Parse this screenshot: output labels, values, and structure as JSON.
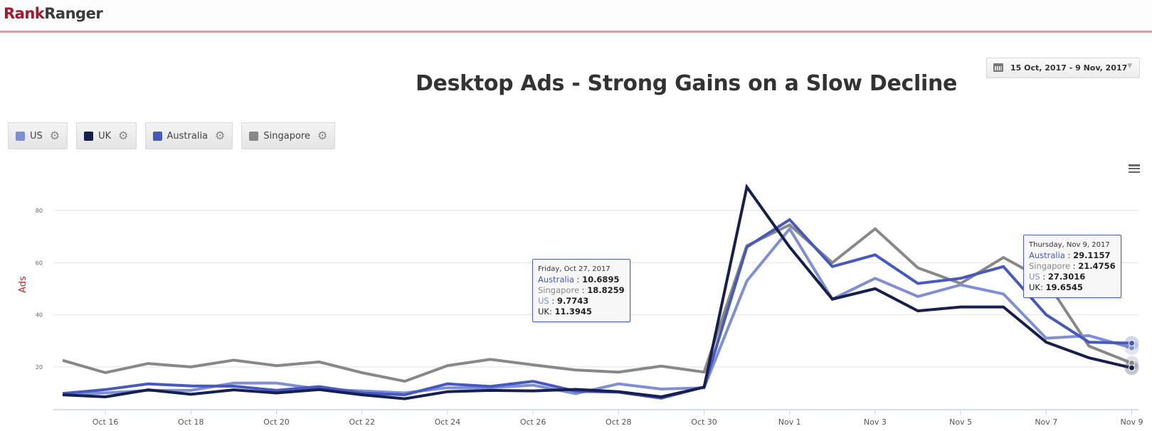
{
  "header": {
    "logo_part1": "Rank",
    "logo_part2": "Ranger"
  },
  "date_range": {
    "label": "15 Oct, 2017 - 9 Nov, 2017",
    "icon": "calendar-icon"
  },
  "menu_icon": "hamburger-menu-icon",
  "legend": [
    {
      "name": "US",
      "color": "#7f8fd6"
    },
    {
      "name": "UK",
      "color": "#161f4d"
    },
    {
      "name": "Australia",
      "color": "#4559c0"
    },
    {
      "name": "Singapore",
      "color": "#888888"
    }
  ],
  "tooltips": [
    {
      "date": "Friday, Oct 27, 2017",
      "rows": [
        {
          "label": "Australia",
          "value": "10.6895",
          "color": "#4559c0"
        },
        {
          "label": "Singapore",
          "value": "18.8259",
          "color": "#888888"
        },
        {
          "label": "US",
          "value": "9.7743",
          "color": "#7f8fd6"
        },
        {
          "label": "UK",
          "value": "11.3945",
          "color": "#222222"
        }
      ]
    },
    {
      "date": "Thursday, Nov 9, 2017",
      "rows": [
        {
          "label": "Australia",
          "value": "29.1157",
          "color": "#4559c0"
        },
        {
          "label": "Singapore",
          "value": "21.4756",
          "color": "#888888"
        },
        {
          "label": "US",
          "value": "27.3016",
          "color": "#7f8fd6"
        },
        {
          "label": "UK",
          "value": "19.6545",
          "color": "#222222"
        }
      ]
    }
  ],
  "chart_data": {
    "type": "line",
    "title": "Desktop Ads - Strong Gains on a Slow Decline",
    "xlabel": "",
    "ylabel": "Ads",
    "ylim": [
      3.6,
      90
    ],
    "yticks": [
      20,
      40,
      60,
      80
    ],
    "grid": true,
    "legend_placement": "top-left",
    "x": [
      "Oct 15",
      "Oct 16",
      "Oct 17",
      "Oct 18",
      "Oct 19",
      "Oct 20",
      "Oct 21",
      "Oct 22",
      "Oct 23",
      "Oct 24",
      "Oct 25",
      "Oct 26",
      "Oct 27",
      "Oct 28",
      "Oct 29",
      "Oct 30",
      "Oct 31",
      "Nov 1",
      "Nov 2",
      "Nov 3",
      "Nov 4",
      "Nov 5",
      "Nov 6",
      "Nov 7",
      "Nov 8",
      "Nov 9"
    ],
    "xtick_labels": [
      "Oct 16",
      "Oct 18",
      "Oct 20",
      "Oct 22",
      "Oct 24",
      "Oct 26",
      "Oct 28",
      "Oct 30",
      "Nov 1",
      "Nov 3",
      "Nov 5",
      "Nov 7",
      "Nov 9"
    ],
    "series": [
      {
        "name": "Singapore",
        "color": "#888888",
        "values": [
          22.5,
          17.8,
          21.3,
          20.0,
          22.6,
          20.5,
          21.9,
          17.8,
          14.5,
          20.5,
          22.9,
          20.8,
          18.8,
          18.0,
          20.3,
          18.0,
          66.5,
          74.5,
          60.0,
          73.0,
          58.0,
          52.0,
          62.0,
          53.0,
          28.0,
          21.48
        ]
      },
      {
        "name": "US",
        "color": "#7f8fd6",
        "values": [
          9.5,
          10.0,
          11.0,
          11.0,
          13.8,
          13.8,
          11.5,
          10.8,
          10.0,
          12.0,
          12.0,
          13.0,
          9.77,
          13.5,
          11.5,
          12.0,
          53.0,
          73.0,
          46.0,
          54.0,
          47.0,
          51.5,
          48.0,
          31.0,
          32.0,
          27.3
        ]
      },
      {
        "name": "Australia",
        "color": "#4559c0",
        "values": [
          9.8,
          11.3,
          13.5,
          12.7,
          12.6,
          11.0,
          12.4,
          10.0,
          9.3,
          13.5,
          12.5,
          14.5,
          10.69,
          10.3,
          8.0,
          12.3,
          66.0,
          76.5,
          58.5,
          63.0,
          52.0,
          54.0,
          58.5,
          40.0,
          29.5,
          29.12
        ]
      },
      {
        "name": "UK",
        "color": "#161f4d",
        "values": [
          9.3,
          8.5,
          11.2,
          9.5,
          11.2,
          10.0,
          11.3,
          9.3,
          7.8,
          10.5,
          11.0,
          10.8,
          11.39,
          10.5,
          8.5,
          12.2,
          89.0,
          66.0,
          46.0,
          50.0,
          41.5,
          43.0,
          43.0,
          29.5,
          23.5,
          19.65
        ]
      }
    ]
  }
}
